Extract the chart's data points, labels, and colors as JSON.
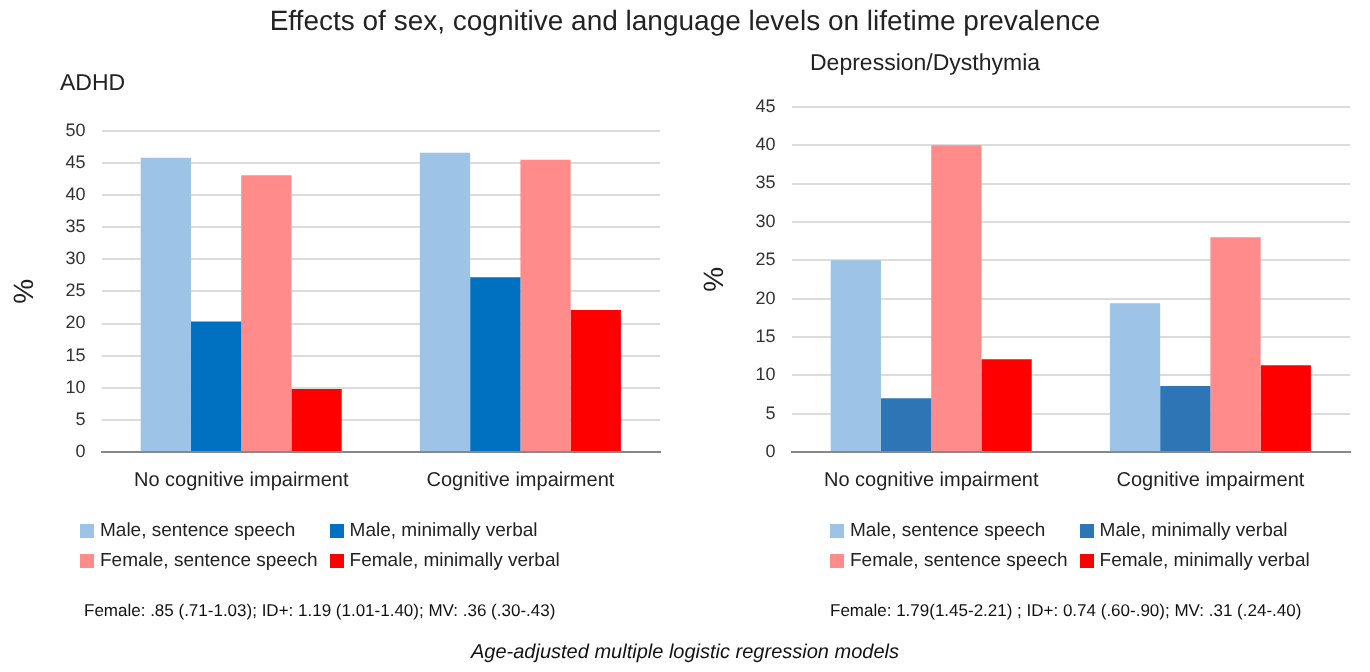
{
  "chart_data": [
    {
      "type": "other",
      "title": "Effects of sex, cognitive and language levels on lifetime prevalence",
      "annotations": [
        "Age-adjusted  multiple logistic regression models"
      ]
    },
    {
      "type": "bar",
      "title": "ADHD",
      "ylabel": "%",
      "categories": [
        "No cognitive impairment",
        "Cognitive impairment"
      ],
      "series": [
        {
          "name": "Male, sentence speech",
          "color": "#9dc3e6",
          "values": [
            45.8,
            46.6
          ]
        },
        {
          "name": "Male, minimally verbal",
          "color": "#0070c0",
          "values": [
            20.3,
            27.2
          ]
        },
        {
          "name": "Female, sentence speech",
          "color": "#ff8b8b",
          "values": [
            43.1,
            45.5
          ]
        },
        {
          "name": "Female, minimally verbal",
          "color": "#ff0000",
          "values": [
            9.8,
            22.1
          ]
        }
      ],
      "ylim": [
        0,
        50
      ],
      "yticks": [
        0,
        5,
        10,
        15,
        20,
        25,
        30,
        35,
        40,
        45,
        50
      ],
      "grid": "y",
      "legend": "bottom",
      "annotations": [
        "Female: .85 (.71-1.03); ID+: 1.19 (1.01-1.40); MV: .36 (.30-.43)"
      ]
    },
    {
      "type": "bar",
      "title": "Depression/Dysthymia",
      "ylabel": "%",
      "categories": [
        "No cognitive impairment",
        "Cognitive impairment"
      ],
      "series": [
        {
          "name": "Male, sentence speech",
          "color": "#9dc3e6",
          "values": [
            25,
            19.4
          ]
        },
        {
          "name": "Male, minimally verbal",
          "color": "#2e75b6",
          "values": [
            7,
            8.6
          ]
        },
        {
          "name": "Female, sentence speech",
          "color": "#ff8b8b",
          "values": [
            40,
            28
          ]
        },
        {
          "name": "Female, minimally verbal",
          "color": "#ff0000",
          "values": [
            12.1,
            11.3
          ]
        }
      ],
      "ylim": [
        0,
        45
      ],
      "yticks": [
        0,
        5,
        10,
        15,
        20,
        25,
        30,
        35,
        40,
        45
      ],
      "grid": "y",
      "legend": "bottom",
      "annotations": [
        "Female: 1.79(1.45-2.21) ; ID+: 0.74 (.60-.90); MV: .31 (.24-.40)"
      ]
    }
  ]
}
